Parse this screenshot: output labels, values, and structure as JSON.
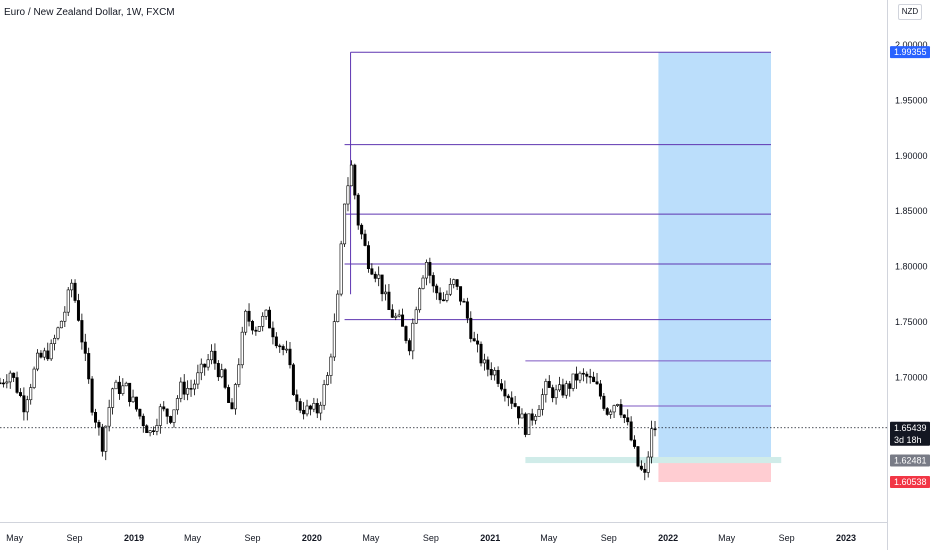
{
  "header": {
    "title": "Euro / New Zealand Dollar, 1W, FXCM",
    "currency_button": "NZD"
  },
  "chart_data": {
    "type": "candlestick",
    "title": "Euro / New Zealand Dollar, 1W, FXCM",
    "xlabel": "",
    "ylabel": "",
    "ylim": [
      1.6,
      2.0
    ],
    "y_ticks": [
      1.65,
      1.7,
      1.75,
      1.8,
      1.85,
      1.9,
      1.95,
      2.0
    ],
    "y_tick_labels": [
      "1.65000",
      "1.70000",
      "1.75000",
      "1.80000",
      "1.85000",
      "1.90000",
      "1.95000",
      "2.00000"
    ],
    "x_range": [
      "2018-04-01",
      "2023-03-26"
    ],
    "x_ticks": [
      {
        "date": "2018-05-01",
        "label": "May"
      },
      {
        "date": "2018-09-01",
        "label": "Sep"
      },
      {
        "date": "2019-01-01",
        "label": "2019",
        "bold": true
      },
      {
        "date": "2019-05-01",
        "label": "May"
      },
      {
        "date": "2019-09-01",
        "label": "Sep"
      },
      {
        "date": "2020-01-01",
        "label": "2020",
        "bold": true
      },
      {
        "date": "2020-05-01",
        "label": "May"
      },
      {
        "date": "2020-09-01",
        "label": "Sep"
      },
      {
        "date": "2021-01-01",
        "label": "2021",
        "bold": true
      },
      {
        "date": "2021-05-01",
        "label": "May"
      },
      {
        "date": "2021-09-01",
        "label": "Sep"
      },
      {
        "date": "2022-01-01",
        "label": "2022",
        "bold": true
      },
      {
        "date": "2022-05-01",
        "label": "May"
      },
      {
        "date": "2022-09-01",
        "label": "Sep"
      },
      {
        "date": "2023-01-01",
        "label": "2023",
        "bold": true
      }
    ],
    "price_path": [
      [
        "2018-04-01",
        1.695
      ],
      [
        "2018-04-22",
        1.705
      ],
      [
        "2018-05-20",
        1.675
      ],
      [
        "2018-06-17",
        1.715
      ],
      [
        "2018-07-15",
        1.725
      ],
      [
        "2018-08-12",
        1.76
      ],
      [
        "2018-08-26",
        1.785
      ],
      [
        "2018-09-09",
        1.755
      ],
      [
        "2018-10-07",
        1.675
      ],
      [
        "2018-10-28",
        1.64
      ],
      [
        "2018-11-18",
        1.69
      ],
      [
        "2018-12-16",
        1.69
      ],
      [
        "2019-01-13",
        1.665
      ],
      [
        "2019-02-03",
        1.65
      ],
      [
        "2019-02-24",
        1.67
      ],
      [
        "2019-03-17",
        1.665
      ],
      [
        "2019-04-07",
        1.69
      ],
      [
        "2019-04-28",
        1.69
      ],
      [
        "2019-05-19",
        1.705
      ],
      [
        "2019-06-09",
        1.72
      ],
      [
        "2019-06-30",
        1.7
      ],
      [
        "2019-07-21",
        1.665
      ],
      [
        "2019-07-28",
        1.695
      ],
      [
        "2019-08-18",
        1.755
      ],
      [
        "2019-09-08",
        1.745
      ],
      [
        "2019-09-29",
        1.755
      ],
      [
        "2019-10-20",
        1.735
      ],
      [
        "2019-11-10",
        1.72
      ],
      [
        "2019-12-01",
        1.675
      ],
      [
        "2019-12-22",
        1.67
      ],
      [
        "2020-01-12",
        1.67
      ],
      [
        "2020-02-02",
        1.7
      ],
      [
        "2020-02-23",
        1.77
      ],
      [
        "2020-03-08",
        1.86
      ],
      [
        "2020-03-22",
        1.89
      ],
      [
        "2020-04-05",
        1.84
      ],
      [
        "2020-04-26",
        1.805
      ],
      [
        "2020-05-17",
        1.79
      ],
      [
        "2020-06-07",
        1.76
      ],
      [
        "2020-06-28",
        1.75
      ],
      [
        "2020-07-19",
        1.73
      ],
      [
        "2020-08-09",
        1.785
      ],
      [
        "2020-08-23",
        1.805
      ],
      [
        "2020-09-06",
        1.78
      ],
      [
        "2020-09-27",
        1.77
      ],
      [
        "2020-10-18",
        1.785
      ],
      [
        "2020-11-08",
        1.765
      ],
      [
        "2020-11-29",
        1.73
      ],
      [
        "2020-12-20",
        1.71
      ],
      [
        "2021-01-10",
        1.705
      ],
      [
        "2021-01-31",
        1.69
      ],
      [
        "2021-02-21",
        1.675
      ],
      [
        "2021-03-14",
        1.655
      ],
      [
        "2021-04-04",
        1.67
      ],
      [
        "2021-04-25",
        1.69
      ],
      [
        "2021-05-16",
        1.685
      ],
      [
        "2021-06-06",
        1.69
      ],
      [
        "2021-06-27",
        1.7
      ],
      [
        "2021-07-18",
        1.7
      ],
      [
        "2021-08-08",
        1.69
      ],
      [
        "2021-08-29",
        1.67
      ],
      [
        "2021-09-19",
        1.68
      ],
      [
        "2021-10-10",
        1.655
      ],
      [
        "2021-10-31",
        1.62
      ],
      [
        "2021-11-14",
        1.61
      ],
      [
        "2021-11-28",
        1.65
      ],
      [
        "2021-12-05",
        1.654
      ]
    ],
    "levels": [
      {
        "start": "2021-03-14",
        "end": "2022-07-31",
        "price": 1.7148,
        "color": "#7e57c2"
      },
      {
        "start": "2021-09-26",
        "end": "2022-07-31",
        "price": 1.674,
        "color": "#7e57c2"
      }
    ],
    "fibonacci": {
      "start": "2020-03-08",
      "end": "2022-07-31",
      "color": "#5e35b1",
      "levels": [
        1.9935,
        1.91,
        1.8473,
        1.8023,
        1.752
      ]
    },
    "position": {
      "start": "2021-12-12",
      "end": "2022-07-31",
      "entry": 1.6248,
      "target": 1.9935,
      "stop": 1.6054,
      "profit_color": "#bbdefb",
      "loss_color": "#ffcdd2"
    },
    "zone": {
      "start": "2021-03-14",
      "end": "2022-08-21",
      "top": 1.628,
      "bottom": 1.6225,
      "color": "#d0ece9"
    },
    "current_price": 1.65439,
    "price_labels": [
      {
        "value": "1.99355",
        "price": 1.99355,
        "bg": "#2962ff",
        "fg": "#ffffff"
      },
      {
        "value": "1.65439",
        "price": 1.65439,
        "bg": "#131722",
        "fg": "#ffffff",
        "sub": "3d 18h"
      },
      {
        "value": "1.62481",
        "price": 1.62481,
        "bg": "#787b86",
        "fg": "#ffffff"
      },
      {
        "value": "1.60538",
        "price": 1.60538,
        "bg": "#f23645",
        "fg": "#ffffff"
      }
    ],
    "colors": {
      "up": "#ffffff",
      "down": "#000000",
      "border": "#000000",
      "wick": "#000000"
    }
  }
}
